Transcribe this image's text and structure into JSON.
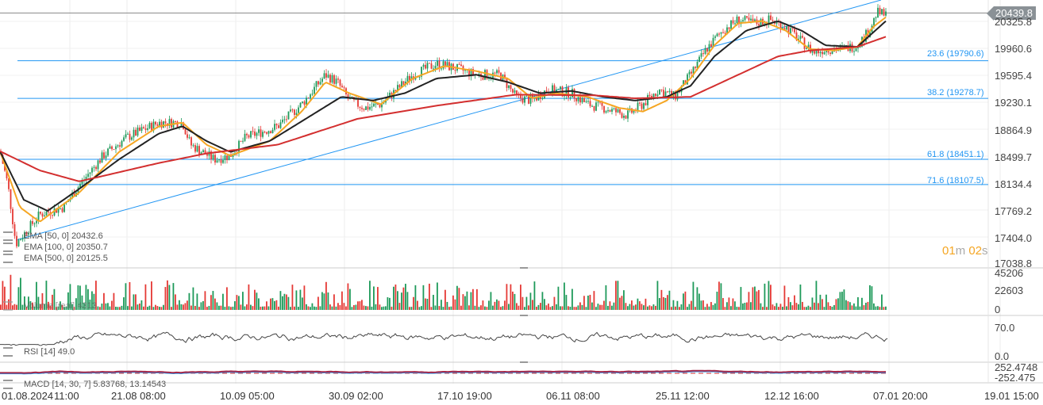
{
  "chart_data": {
    "type": "candlestick",
    "instrument_last_price": "20439.8",
    "price_axis": {
      "ticks": [
        "20325.8",
        "19960.6",
        "19595.4",
        "19230.1",
        "18864.9",
        "18499.7",
        "18134.4",
        "17769.2",
        "17404.0",
        "17038.8"
      ],
      "range": [
        17038.8,
        20325.8
      ]
    },
    "time_axis": {
      "ticks": [
        "01.08.2024",
        "11:00",
        "21.08 08:00",
        "10.09 05:00",
        "30.09 02:00",
        "17.10 19:00",
        "06.11 08:00",
        "25.11 12:00",
        "12.12 16:00",
        "07.01 20:00",
        "19.01 15:00"
      ]
    },
    "price_path": {
      "t": [
        0,
        10,
        20,
        35,
        50,
        80,
        100,
        130,
        160,
        200,
        230,
        240,
        270,
        290,
        310,
        350,
        380,
        410,
        425,
        440,
        460,
        480,
        500,
        520,
        550,
        570,
        600,
        630,
        650,
        670,
        690,
        720,
        740,
        760,
        790,
        810,
        830,
        850,
        870,
        890,
        910,
        930,
        950,
        970,
        990,
        1010,
        1025,
        1040,
        1060,
        1080,
        1095,
        1105,
        1118
      ],
      "price": [
        18560,
        18100,
        17300,
        17500,
        17700,
        17800,
        18100,
        18500,
        18750,
        18950,
        18950,
        18650,
        18450,
        18500,
        18750,
        18900,
        19200,
        19600,
        19500,
        19250,
        19150,
        19200,
        19400,
        19600,
        19750,
        19700,
        19600,
        19600,
        19300,
        19250,
        19400,
        19350,
        19200,
        19150,
        19050,
        19200,
        19400,
        19300,
        19600,
        19950,
        20200,
        20350,
        20300,
        20350,
        20250,
        20050,
        19900,
        19950,
        19950,
        20000,
        20200,
        20450,
        20400
      ]
    },
    "series": [
      {
        "name": "EMA [50, 0]",
        "value": "20432.6",
        "color": "#f5a623",
        "t": [
          0,
          25,
          50,
          100,
          150,
          200,
          230,
          260,
          290,
          340,
          380,
          410,
          440,
          480,
          520,
          560,
          600,
          640,
          670,
          700,
          740,
          780,
          810,
          840,
          870,
          900,
          930,
          960,
          990,
          1020,
          1050,
          1080,
          1100,
          1118
        ],
        "price": [
          18560,
          17800,
          17600,
          18000,
          18550,
          18900,
          18950,
          18650,
          18500,
          18700,
          19100,
          19500,
          19350,
          19200,
          19550,
          19720,
          19650,
          19550,
          19280,
          19350,
          19300,
          19150,
          19100,
          19250,
          19550,
          20000,
          20300,
          20330,
          20200,
          19950,
          19930,
          19980,
          20250,
          20400
        ]
      },
      {
        "name": "EMA [100, 0]",
        "value": "20350.7",
        "color": "#222222",
        "t": [
          0,
          30,
          60,
          100,
          150,
          200,
          230,
          260,
          290,
          340,
          400,
          430,
          470,
          510,
          550,
          600,
          640,
          680,
          720,
          760,
          800,
          840,
          870,
          900,
          940,
          980,
          1010,
          1040,
          1080,
          1118
        ],
        "price": [
          18560,
          17900,
          17750,
          18050,
          18450,
          18800,
          18900,
          18700,
          18550,
          18700,
          19100,
          19300,
          19250,
          19350,
          19550,
          19600,
          19500,
          19350,
          19380,
          19300,
          19250,
          19300,
          19450,
          19850,
          20200,
          20330,
          20200,
          20000,
          19980,
          20350
        ]
      },
      {
        "name": "EMA [500, 0]",
        "value": "20125.5",
        "color": "#d32f2f",
        "t": [
          0,
          50,
          100,
          200,
          260,
          350,
          450,
          550,
          650,
          750,
          800,
          870,
          920,
          980,
          1020,
          1080,
          1118
        ],
        "price": [
          18560,
          18300,
          18150,
          18400,
          18530,
          18650,
          19000,
          19180,
          19330,
          19320,
          19280,
          19300,
          19550,
          19850,
          19930,
          19980,
          20125
        ]
      }
    ],
    "fibonacci": [
      {
        "label": "23.6 (19790.6)",
        "price": 19790.6
      },
      {
        "label": "38.2 (19278.7)",
        "price": 19278.7
      },
      {
        "label": "61.8 (18451.1)",
        "price": 18451.1
      },
      {
        "label": "71.6 (18107.5)",
        "price": 18107.5
      }
    ],
    "volume": {
      "label": "Volume [real] 4313",
      "ticks": [
        "45206",
        "22603",
        "0"
      ],
      "max": 45206
    },
    "rsi": {
      "label": "RSI [14] 49.0",
      "ticks": [
        "70.0",
        "0.0"
      ]
    },
    "macd": {
      "label": "MACD [14, 30, 7] 5.83768, 13.14543",
      "ticks": [
        "252.4748",
        "-252.475"
      ]
    },
    "colors": {
      "up": "#1e9a5a",
      "down": "#e53935",
      "fib": "#2196f3",
      "trend": "#2196f3"
    }
  },
  "countdown": {
    "min": "01",
    "m": "m",
    "sec": "02",
    "s": "s"
  }
}
